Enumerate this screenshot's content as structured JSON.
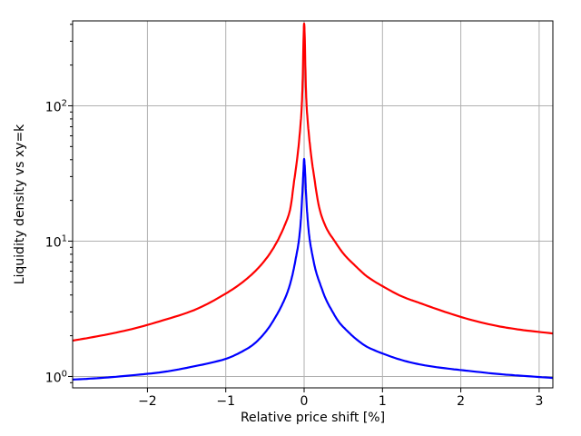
{
  "chart_data": {
    "type": "line",
    "title": "",
    "xlabel": "Relative price shift [%]",
    "ylabel": "Liquidity density vs xy=k",
    "xlim": [
      -2.955,
      3.175
    ],
    "ylim": [
      0.824,
      424
    ],
    "yscale": "log",
    "grid": true,
    "legend": "none",
    "grid_color": "#b0b0b0",
    "spine_color": "#000000",
    "x_ticks": {
      "values": [
        -2,
        -1,
        0,
        1,
        2,
        3
      ],
      "labels": [
        "−2",
        "−1",
        "0",
        "1",
        "2",
        "3"
      ]
    },
    "y_ticks": {
      "values": [
        1,
        10,
        100
      ],
      "labels": [
        {
          "base": "10",
          "exp": "0"
        },
        {
          "base": "10",
          "exp": "1"
        },
        {
          "base": "10",
          "exp": "2"
        }
      ]
    },
    "y_minor_ticks": [
      0.9,
      2,
      3,
      4,
      5,
      6,
      7,
      8,
      9,
      20,
      30,
      40,
      50,
      60,
      70,
      80,
      90,
      200,
      300,
      400
    ],
    "series": [
      {
        "name": "red-curve",
        "color": "#ff0000",
        "linewidth": 2.2,
        "points": [
          [
            -2.955,
            1.84
          ],
          [
            -2.6,
            2.0
          ],
          [
            -2.2,
            2.24
          ],
          [
            -1.8,
            2.6
          ],
          [
            -1.4,
            3.1
          ],
          [
            -1.0,
            4.1
          ],
          [
            -0.8,
            4.9
          ],
          [
            -0.6,
            6.2
          ],
          [
            -0.45,
            7.9
          ],
          [
            -0.35,
            9.8
          ],
          [
            -0.25,
            13.0
          ],
          [
            -0.18,
            17.0
          ],
          [
            -0.127,
            28.0
          ],
          [
            -0.08,
            45.0
          ],
          [
            -0.05,
            68.0
          ],
          [
            -0.03,
            100.0
          ],
          [
            -0.018,
            160.0
          ],
          [
            -0.008,
            300.0
          ],
          [
            0.0,
            405.0
          ],
          [
            0.008,
            320.0
          ],
          [
            0.018,
            170.0
          ],
          [
            0.03,
            105.0
          ],
          [
            0.05,
            72.0
          ],
          [
            0.08,
            48.0
          ],
          [
            0.127,
            30.0
          ],
          [
            0.2,
            17.0
          ],
          [
            0.3,
            12.0
          ],
          [
            0.38,
            10.2
          ],
          [
            0.5,
            8.1
          ],
          [
            0.65,
            6.6
          ],
          [
            0.8,
            5.5
          ],
          [
            1.0,
            4.65
          ],
          [
            1.25,
            3.9
          ],
          [
            1.5,
            3.45
          ],
          [
            1.8,
            3.0
          ],
          [
            2.1,
            2.65
          ],
          [
            2.5,
            2.34
          ],
          [
            2.8,
            2.2
          ],
          [
            3.175,
            2.08
          ]
        ]
      },
      {
        "name": "blue-curve",
        "color": "#0000ff",
        "linewidth": 2.2,
        "points": [
          [
            -2.955,
            0.948
          ],
          [
            -2.6,
            0.975
          ],
          [
            -2.2,
            1.02
          ],
          [
            -1.8,
            1.08
          ],
          [
            -1.4,
            1.19
          ],
          [
            -1.0,
            1.35
          ],
          [
            -0.8,
            1.52
          ],
          [
            -0.65,
            1.72
          ],
          [
            -0.54,
            1.98
          ],
          [
            -0.45,
            2.3
          ],
          [
            -0.35,
            2.85
          ],
          [
            -0.28,
            3.4
          ],
          [
            -0.2,
            4.4
          ],
          [
            -0.15,
            5.6
          ],
          [
            -0.1,
            7.8
          ],
          [
            -0.07,
            9.8
          ],
          [
            -0.045,
            13.5
          ],
          [
            -0.025,
            21.0
          ],
          [
            -0.01,
            32.0
          ],
          [
            0.0,
            40.5
          ],
          [
            0.01,
            34.0
          ],
          [
            0.025,
            22.0
          ],
          [
            0.045,
            14.5
          ],
          [
            0.07,
            10.4
          ],
          [
            0.1,
            8.2
          ],
          [
            0.15,
            6.0
          ],
          [
            0.2,
            4.9
          ],
          [
            0.28,
            3.7
          ],
          [
            0.35,
            3.1
          ],
          [
            0.45,
            2.5
          ],
          [
            0.54,
            2.2
          ],
          [
            0.65,
            1.92
          ],
          [
            0.8,
            1.66
          ],
          [
            1.0,
            1.48
          ],
          [
            1.25,
            1.32
          ],
          [
            1.5,
            1.22
          ],
          [
            1.8,
            1.15
          ],
          [
            2.1,
            1.1
          ],
          [
            2.5,
            1.04
          ],
          [
            2.8,
            1.01
          ],
          [
            3.175,
            0.975
          ]
        ]
      }
    ]
  }
}
